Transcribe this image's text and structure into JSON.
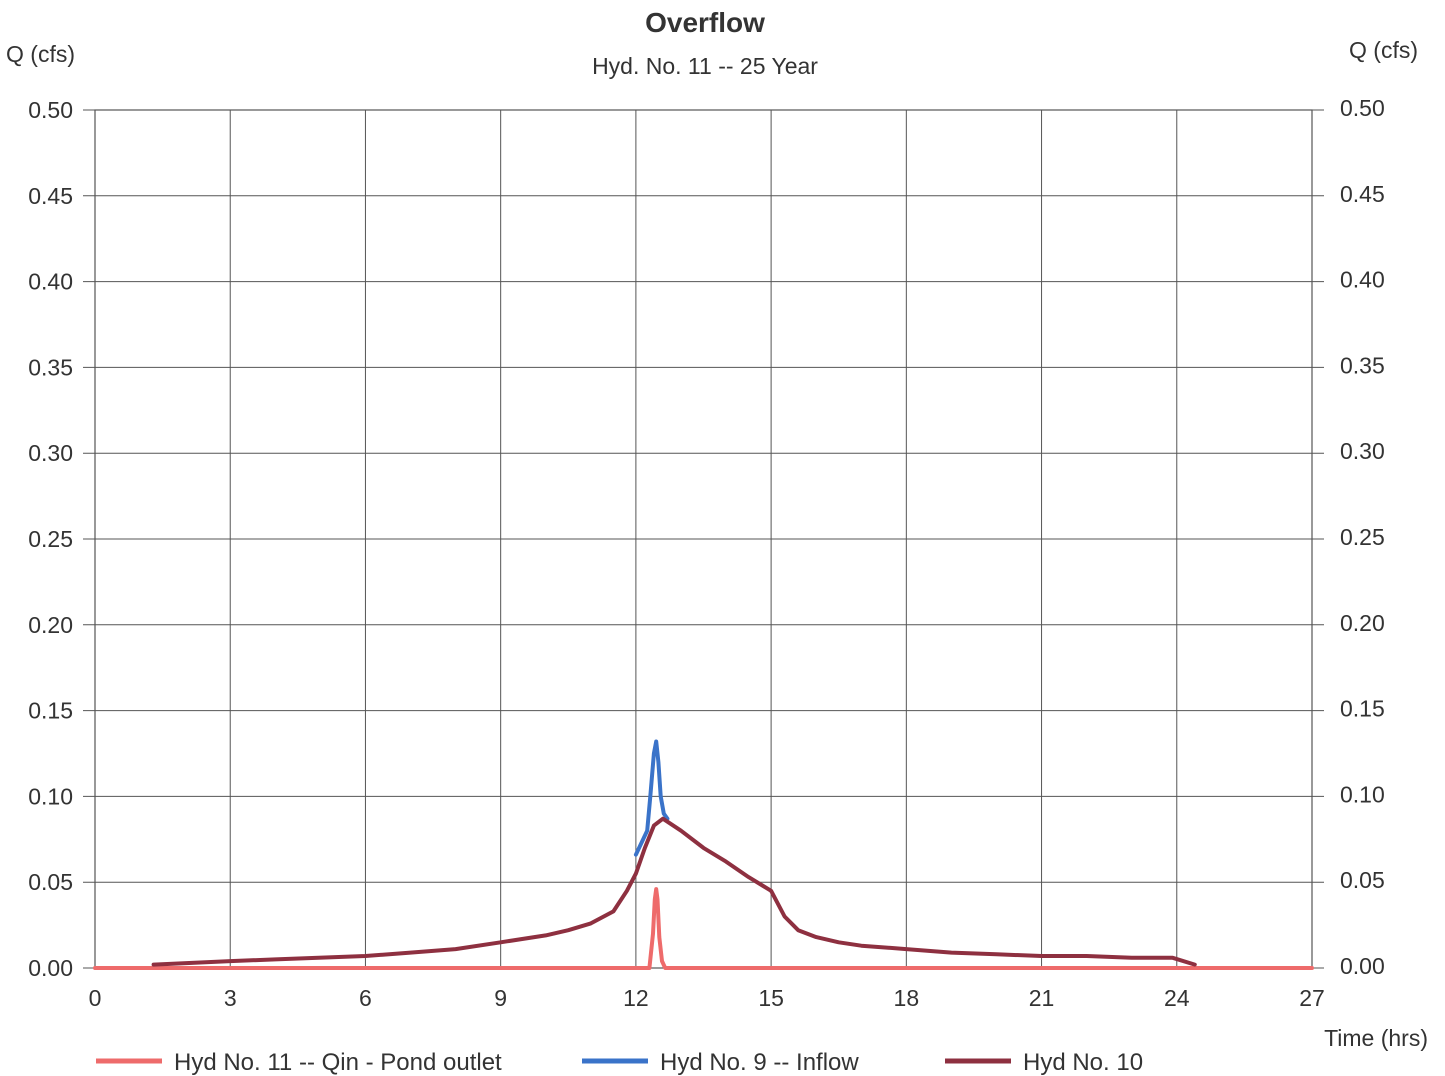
{
  "chart_data": {
    "type": "line",
    "title": "Overflow",
    "subtitle": "Hyd. No. 11 -- 25 Year",
    "ylabel_left": "Q (cfs)",
    "ylabel_right": "Q (cfs)",
    "xlabel": "Time (hrs)",
    "xlim": [
      0,
      27
    ],
    "ylim": [
      0,
      0.5
    ],
    "xticks": [
      0,
      3,
      6,
      9,
      12,
      15,
      18,
      21,
      24,
      27
    ],
    "xtick_labels": [
      "0",
      "3",
      "6",
      "9",
      "12",
      "15",
      "18",
      "21",
      "24",
      "27"
    ],
    "yticks": [
      0,
      0.05,
      0.1,
      0.15,
      0.2,
      0.25,
      0.3,
      0.35,
      0.4,
      0.45,
      0.5
    ],
    "ytick_labels": [
      "0.00",
      "0.05",
      "0.10",
      "0.15",
      "0.20",
      "0.25",
      "0.30",
      "0.35",
      "0.40",
      "0.45",
      "0.50"
    ],
    "grid": true,
    "legend_position": "bottom",
    "series": [
      {
        "name": "Hyd No. 11 -- Qin - Pond outlet",
        "color": "#ee6b6b",
        "x": [
          0,
          12.3,
          12.38,
          12.42,
          12.45,
          12.48,
          12.52,
          12.58,
          12.65,
          27
        ],
        "y": [
          0,
          0,
          0.02,
          0.04,
          0.046,
          0.04,
          0.018,
          0.004,
          0,
          0
        ]
      },
      {
        "name": "Hyd No. 9 -- Inflow",
        "color": "#3a73c9",
        "x": [
          12.0,
          12.25,
          12.32,
          12.4,
          12.45,
          12.5,
          12.55,
          12.62,
          12.7
        ],
        "y": [
          0.066,
          0.08,
          0.1,
          0.125,
          0.132,
          0.12,
          0.1,
          0.09,
          0.087
        ]
      },
      {
        "name": "Hyd No. 10",
        "color": "#8e3040",
        "x": [
          1.3,
          3,
          4,
          6,
          7,
          8,
          9,
          10,
          10.5,
          11,
          11.5,
          11.8,
          12.0,
          12.2,
          12.4,
          12.6,
          13,
          13.5,
          14,
          14.5,
          15,
          15.3,
          15.6,
          16,
          16.5,
          17,
          18,
          19,
          20,
          21,
          22,
          23,
          23.9,
          24.4
        ],
        "y": [
          0.002,
          0.004,
          0.005,
          0.007,
          0.009,
          0.011,
          0.015,
          0.019,
          0.022,
          0.026,
          0.033,
          0.045,
          0.055,
          0.07,
          0.083,
          0.087,
          0.08,
          0.07,
          0.062,
          0.053,
          0.045,
          0.03,
          0.022,
          0.018,
          0.015,
          0.013,
          0.011,
          0.009,
          0.008,
          0.007,
          0.007,
          0.006,
          0.006,
          0.002
        ]
      }
    ]
  }
}
